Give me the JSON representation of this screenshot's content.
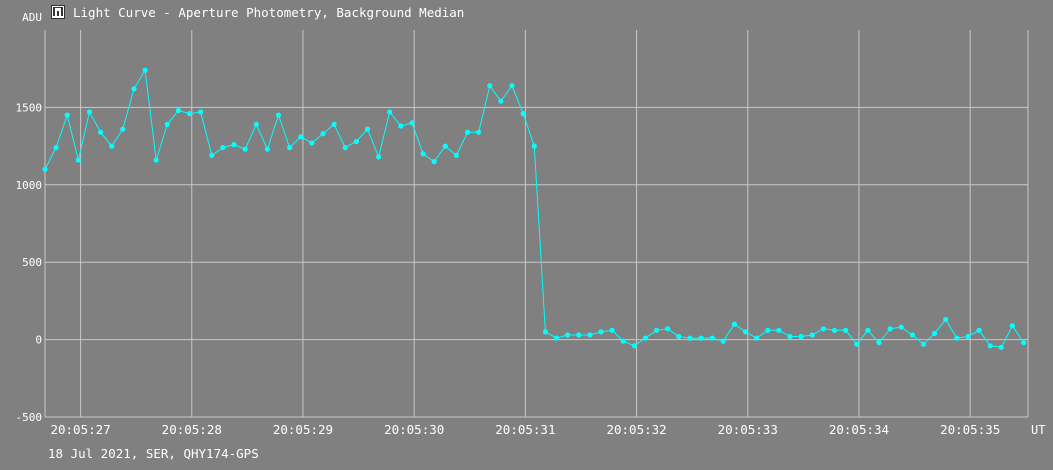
{
  "window": {
    "title": "Light Curve - Aperture Photometry, Background Median",
    "icon": "light-curve-app-icon"
  },
  "footer": {
    "info": "18 Jul 2021, SER, QHY174-GPS"
  },
  "colors": {
    "background": "#808080",
    "grid": "#c8c8c8",
    "series": "#00ffff",
    "text": "#ffffff"
  },
  "chart_data": {
    "type": "line",
    "title": "",
    "xlabel": "UT",
    "ylabel": "ADU",
    "xlim": [
      "20:05:26.68",
      "20:05:35.52"
    ],
    "ylim": [
      -500,
      2000
    ],
    "grid": true,
    "x_ticks": [
      "20:05:27",
      "20:05:28",
      "20:05:29",
      "20:05:30",
      "20:05:31",
      "20:05:32",
      "20:05:33",
      "20:05:34",
      "20:05:35"
    ],
    "y_ticks": [
      -500,
      0,
      500,
      1000,
      1500
    ],
    "x_start": "20:05:26.68",
    "x_step_seconds": 0.1,
    "series": [
      {
        "values": [
          1100,
          1240,
          1450,
          1160,
          1470,
          1340,
          1250,
          1360,
          1620,
          1740,
          1160,
          1390,
          1480,
          1460,
          1470,
          1190,
          1240,
          1260,
          1230,
          1390,
          1230,
          1450,
          1240,
          1310,
          1270,
          1330,
          1390,
          1240,
          1280,
          1360,
          1180,
          1470,
          1380,
          1400,
          1200,
          1150,
          1250,
          1190,
          1340,
          1340,
          1640,
          1540,
          1640,
          1460,
          1250,
          50,
          10,
          30,
          30,
          30,
          50,
          60,
          -10,
          -40,
          10,
          60,
          70,
          20,
          10,
          10,
          10,
          -10,
          100,
          50,
          10,
          60,
          60,
          20,
          20,
          30,
          70,
          60,
          60,
          -30,
          60,
          -20,
          70,
          80,
          30,
          -30,
          40,
          130,
          10,
          20,
          60,
          -40,
          -50,
          90,
          -20
        ]
      }
    ]
  }
}
